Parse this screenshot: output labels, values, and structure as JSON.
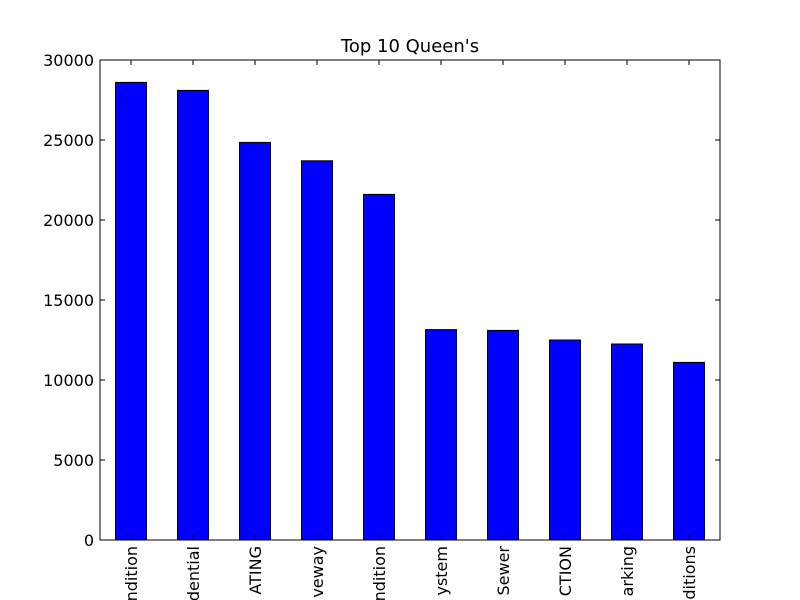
{
  "chart_data": {
    "type": "bar",
    "title": "Top 10 Queen's",
    "xlabel": "",
    "ylabel": "",
    "categories": [
      "ndition",
      "dential",
      "ATING",
      "veway",
      "ndition",
      "ystem",
      "Sewer",
      "CTION",
      "arking",
      "ditions"
    ],
    "values": [
      28600,
      28100,
      24850,
      23700,
      21600,
      13150,
      13100,
      12500,
      12250,
      11100
    ],
    "ylim": [
      0,
      30000
    ],
    "yticks": [
      0,
      5000,
      10000,
      15000,
      20000,
      25000,
      30000
    ],
    "ytick_labels": [
      "0",
      "5000",
      "10000",
      "15000",
      "20000",
      "25000",
      "30000"
    ],
    "grid": false,
    "legend": "none",
    "bar_color": "#0000ff"
  }
}
